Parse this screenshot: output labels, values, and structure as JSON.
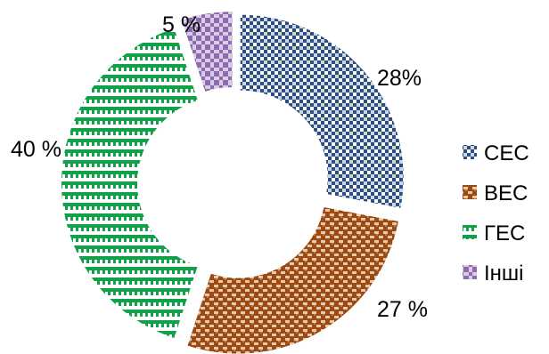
{
  "chart_data": {
    "type": "pie",
    "variant": "exploded-doughnut",
    "categories": [
      "СЕС",
      "ВЕС",
      "ГЕС",
      "Інші"
    ],
    "values": [
      28,
      27,
      40,
      5
    ],
    "data_labels": [
      "28%",
      "27 %",
      "40 %",
      "5 %"
    ],
    "legend_position": "right",
    "colors": [
      "#2e4e80",
      "#9a4a12",
      "#12a04a",
      "#8e6aae"
    ]
  }
}
